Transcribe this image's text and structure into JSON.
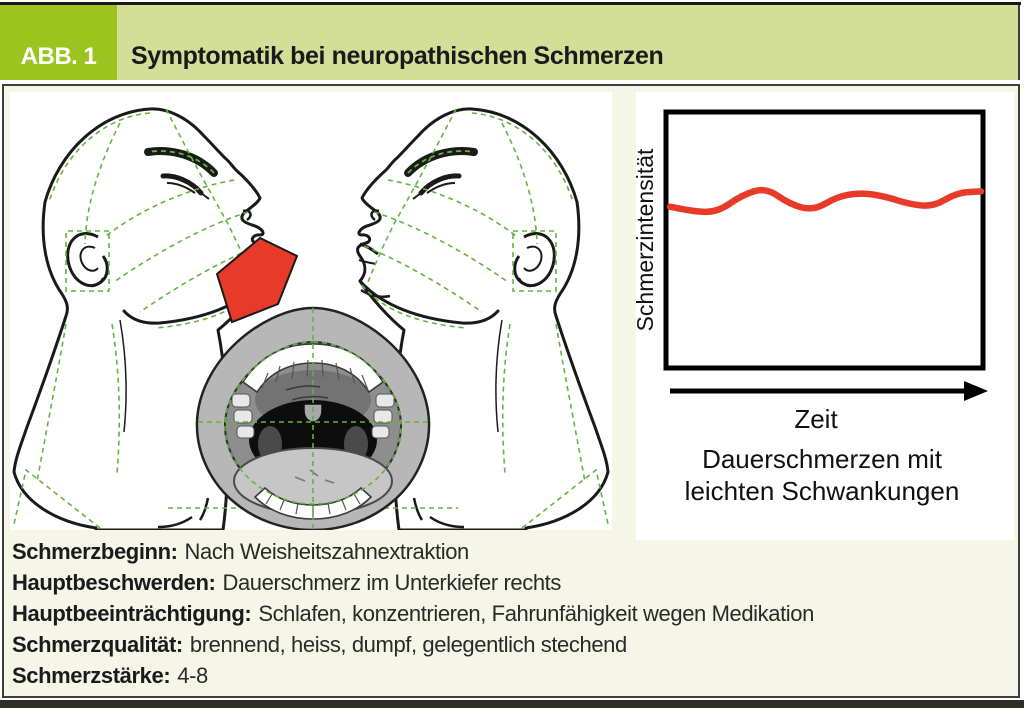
{
  "figure": {
    "label": "ABB. 1",
    "title": "Symptomatik bei neuropathischen Schmerzen"
  },
  "chart": {
    "y_axis_label": "Schmerzintensität",
    "x_axis_label": "Zeit",
    "caption_line1": "Dauerschmerzen mit",
    "caption_line2": "leichten Schwankungen"
  },
  "chart_data": {
    "type": "line",
    "title": "Dauerschmerzen mit leichten Schwankungen",
    "xlabel": "Zeit",
    "ylabel": "Schmerzintensität",
    "x": [
      0,
      1,
      2,
      3,
      4,
      5,
      6,
      7,
      8,
      9,
      10,
      11,
      12,
      13
    ],
    "values": [
      6.3,
      6.1,
      6.1,
      6.75,
      7.05,
      6.4,
      6.15,
      6.7,
      6.85,
      6.7,
      6.4,
      6.3,
      6.85,
      6.9
    ],
    "ylim": [
      0,
      10
    ],
    "grid": false,
    "legend_position": "none",
    "line_color": "#e83a28"
  },
  "details": {
    "rows": [
      {
        "label": "Schmerzbeginn:",
        "value": "Nach Weisheitszahnextraktion"
      },
      {
        "label": "Hauptbeschwerden:",
        "value": "Dauerschmerz im Unterkiefer rechts"
      },
      {
        "label": "Hauptbeeinträchtigung:",
        "value": "Schlafen, konzentrieren, Fahrunfähigkeit wegen Medikation"
      },
      {
        "label": "Schmerzqualität:",
        "value": "brennend, heiss, dumpf, gelegentlich stechend"
      },
      {
        "label": "Schmerzstärke:",
        "value": "4-8"
      }
    ]
  },
  "colors": {
    "accent_green": "#9cc41e",
    "header_light_green": "#d3de98",
    "panel_cream": "#f5f5e8",
    "pain_red": "#e83a28",
    "construction_line_green": "#63b43e",
    "footer_dark": "#2c2f28"
  }
}
